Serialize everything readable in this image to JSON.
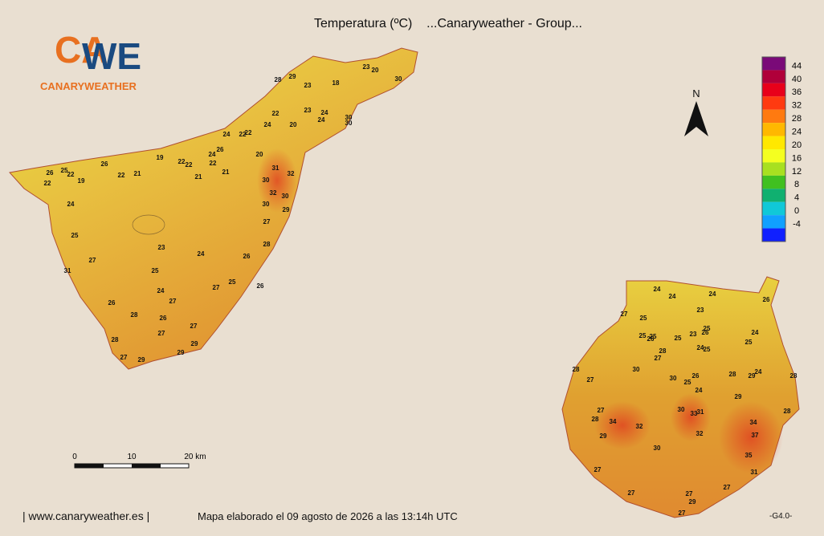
{
  "header": {
    "title": "Temperatura (ºC)    ...Canaryweather - Group..."
  },
  "logo": {
    "left": "CA",
    "right": "WE",
    "name": "CANARYWEATHER"
  },
  "north": "N",
  "legend": {
    "labels": [
      44,
      40,
      36,
      32,
      28,
      24,
      20,
      16,
      12,
      8,
      4,
      0,
      -4
    ],
    "colors": [
      "#7a0a78",
      "#b0003a",
      "#e8001a",
      "#ff3a10",
      "#ff7a10",
      "#ffb800",
      "#ffe800",
      "#f4ff20",
      "#a8e020",
      "#40c020",
      "#10b070",
      "#10c8d8",
      "#10a0ff",
      "#1020ff"
    ]
  },
  "scale": {
    "labels": [
      "0",
      "10",
      "20 km"
    ]
  },
  "tenerife": [
    28,
    29,
    23,
    18,
    23,
    20,
    30,
    22,
    23,
    24,
    24,
    20,
    24,
    30,
    30,
    24,
    22,
    22,
    26,
    24,
    20,
    26,
    19,
    22,
    22,
    22,
    22,
    21,
    21,
    21,
    31,
    32,
    26,
    25,
    22,
    19,
    22,
    30,
    32,
    30,
    30,
    29,
    24,
    27,
    25,
    28,
    23,
    24,
    27,
    26,
    31,
    25,
    25,
    26,
    27,
    24,
    27,
    26,
    28,
    26,
    27,
    27,
    28,
    29,
    29,
    27,
    29
  ],
  "gran_canaria": [
    24,
    24,
    24,
    26,
    27,
    25,
    23,
    25,
    25,
    26,
    25,
    23,
    25,
    26,
    24,
    25,
    24,
    25,
    28,
    27,
    28,
    27,
    30,
    30,
    26,
    25,
    28,
    29,
    24,
    28,
    24,
    29,
    27,
    28,
    30,
    33,
    31,
    34,
    28,
    34,
    32,
    32,
    29,
    37,
    30,
    35,
    27,
    31,
    27,
    27,
    27,
    29,
    27
  ],
  "footer": {
    "site": "| www.canaryweather.es |",
    "note": "Mapa elaborado el 09 agosto de 2026 a las 13:14h UTC",
    "version": "-G4.0-"
  }
}
